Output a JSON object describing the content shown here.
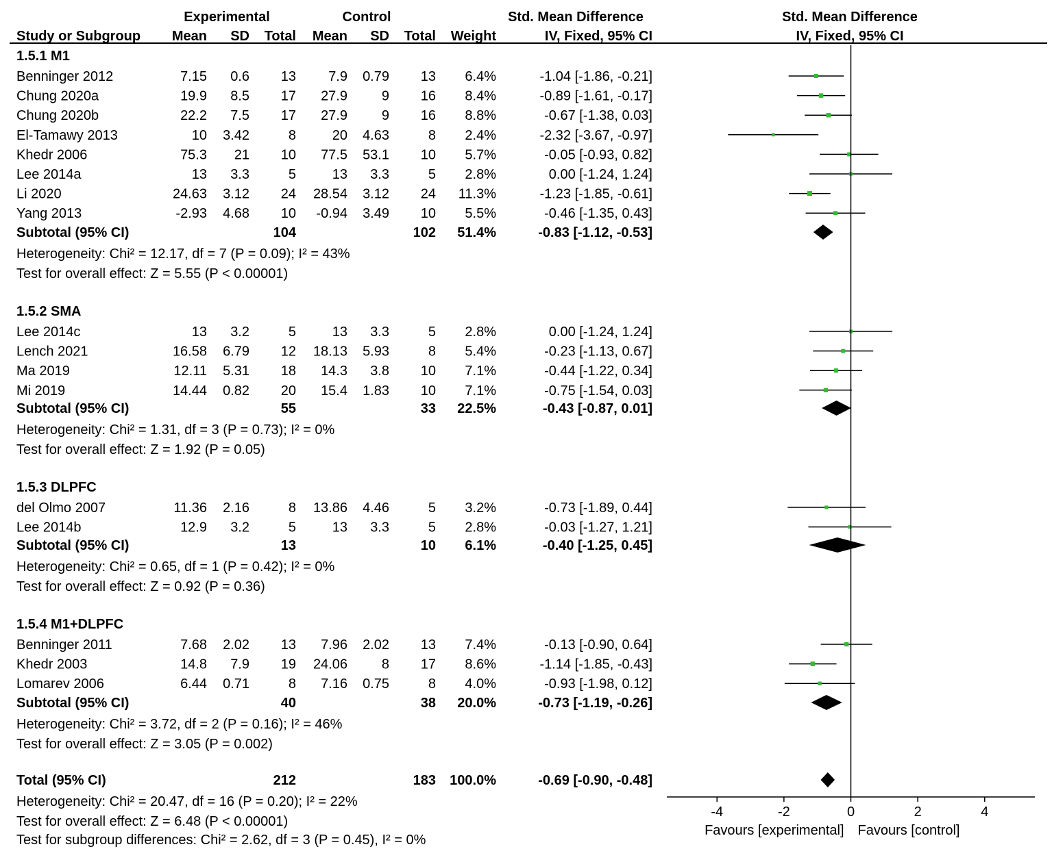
{
  "chart_data": {
    "type": "forest",
    "header": {
      "exp_group": "Experimental",
      "ctl_group": "Control",
      "effect_title": "Std. Mean Difference",
      "plot_title": "Std. Mean Difference",
      "col_study": "Study or Subgroup",
      "col_mean_e": "Mean",
      "col_sd_e": "SD",
      "col_total_e": "Total",
      "col_mean_c": "Mean",
      "col_sd_c": "SD",
      "col_total_c": "Total",
      "col_weight": "Weight",
      "col_ci": "IV, Fixed, 95% CI",
      "plot_ci": "IV, Fixed, 95% CI"
    },
    "subgroups": [
      {
        "title": "1.5.1 M1",
        "studies": [
          {
            "name": "Benninger 2012",
            "mean_e": "7.15",
            "sd_e": "0.6",
            "n_e": "13",
            "mean_c": "7.9",
            "sd_c": "0.79",
            "n_c": "13",
            "weight": "6.4%",
            "ci": "-1.04 [-1.86, -0.21]",
            "est": -1.04,
            "lo": -1.86,
            "hi": -0.21,
            "w": 6.4
          },
          {
            "name": "Chung 2020a",
            "mean_e": "19.9",
            "sd_e": "8.5",
            "n_e": "17",
            "mean_c": "27.9",
            "sd_c": "9",
            "n_c": "16",
            "weight": "8.4%",
            "ci": "-0.89 [-1.61, -0.17]",
            "est": -0.89,
            "lo": -1.61,
            "hi": -0.17,
            "w": 8.4
          },
          {
            "name": "Chung 2020b",
            "mean_e": "22.2",
            "sd_e": "7.5",
            "n_e": "17",
            "mean_c": "27.9",
            "sd_c": "9",
            "n_c": "16",
            "weight": "8.8%",
            "ci": "-0.67 [-1.38, 0.03]",
            "est": -0.67,
            "lo": -1.38,
            "hi": 0.03,
            "w": 8.8
          },
          {
            "name": "El-Tamawy 2013",
            "mean_e": "10",
            "sd_e": "3.42",
            "n_e": "8",
            "mean_c": "20",
            "sd_c": "4.63",
            "n_c": "8",
            "weight": "2.4%",
            "ci": "-2.32 [-3.67, -0.97]",
            "est": -2.32,
            "lo": -3.67,
            "hi": -0.97,
            "w": 2.4
          },
          {
            "name": "Khedr 2006",
            "mean_e": "75.3",
            "sd_e": "21",
            "n_e": "10",
            "mean_c": "77.5",
            "sd_c": "53.1",
            "n_c": "10",
            "weight": "5.7%",
            "ci": "-0.05 [-0.93, 0.82]",
            "est": -0.05,
            "lo": -0.93,
            "hi": 0.82,
            "w": 5.7
          },
          {
            "name": "Lee 2014a",
            "mean_e": "13",
            "sd_e": "3.3",
            "n_e": "5",
            "mean_c": "13",
            "sd_c": "3.3",
            "n_c": "5",
            "weight": "2.8%",
            "ci": "0.00 [-1.24, 1.24]",
            "est": 0.0,
            "lo": -1.24,
            "hi": 1.24,
            "w": 2.8
          },
          {
            "name": "Li 2020",
            "mean_e": "24.63",
            "sd_e": "3.12",
            "n_e": "24",
            "mean_c": "28.54",
            "sd_c": "3.12",
            "n_c": "24",
            "weight": "11.3%",
            "ci": "-1.23 [-1.85, -0.61]",
            "est": -1.23,
            "lo": -1.85,
            "hi": -0.61,
            "w": 11.3
          },
          {
            "name": "Yang 2013",
            "mean_e": "-2.93",
            "sd_e": "4.68",
            "n_e": "10",
            "mean_c": "-0.94",
            "sd_c": "3.49",
            "n_c": "10",
            "weight": "5.5%",
            "ci": "-0.46 [-1.35, 0.43]",
            "est": -0.46,
            "lo": -1.35,
            "hi": 0.43,
            "w": 5.5
          }
        ],
        "subtotal": {
          "label": "Subtotal (95% CI)",
          "n_e": "104",
          "n_c": "102",
          "weight": "51.4%",
          "ci": "-0.83 [-1.12, -0.53]",
          "est": -0.83,
          "lo": -1.12,
          "hi": -0.53
        },
        "heterogeneity": "Heterogeneity: Chi² = 12.17, df = 7 (P = 0.09); I² = 43%",
        "overall": "Test for overall effect: Z = 5.55 (P < 0.00001)"
      },
      {
        "title": "1.5.2 SMA",
        "studies": [
          {
            "name": "Lee 2014c",
            "mean_e": "13",
            "sd_e": "3.2",
            "n_e": "5",
            "mean_c": "13",
            "sd_c": "3.3",
            "n_c": "5",
            "weight": "2.8%",
            "ci": "0.00 [-1.24, 1.24]",
            "est": 0.0,
            "lo": -1.24,
            "hi": 1.24,
            "w": 2.8
          },
          {
            "name": "Lench 2021",
            "mean_e": "16.58",
            "sd_e": "6.79",
            "n_e": "12",
            "mean_c": "18.13",
            "sd_c": "5.93",
            "n_c": "8",
            "weight": "5.4%",
            "ci": "-0.23 [-1.13, 0.67]",
            "est": -0.23,
            "lo": -1.13,
            "hi": 0.67,
            "w": 5.4
          },
          {
            "name": "Ma 2019",
            "mean_e": "12.11",
            "sd_e": "5.31",
            "n_e": "18",
            "mean_c": "14.3",
            "sd_c": "3.8",
            "n_c": "10",
            "weight": "7.1%",
            "ci": "-0.44 [-1.22, 0.34]",
            "est": -0.44,
            "lo": -1.22,
            "hi": 0.34,
            "w": 7.1
          },
          {
            "name": "Mi 2019",
            "mean_e": "14.44",
            "sd_e": "0.82",
            "n_e": "20",
            "mean_c": "15.4",
            "sd_c": "1.83",
            "n_c": "10",
            "weight": "7.1%",
            "ci": "-0.75 [-1.54, 0.03]",
            "est": -0.75,
            "lo": -1.54,
            "hi": 0.03,
            "w": 7.1
          }
        ],
        "subtotal": {
          "label": "Subtotal (95% CI)",
          "n_e": "55",
          "n_c": "33",
          "weight": "22.5%",
          "ci": "-0.43 [-0.87, 0.01]",
          "est": -0.43,
          "lo": -0.87,
          "hi": 0.01
        },
        "heterogeneity": "Heterogeneity: Chi² = 1.31, df = 3 (P = 0.73); I² = 0%",
        "overall": "Test for overall effect: Z = 1.92 (P = 0.05)"
      },
      {
        "title": "1.5.3 DLPFC",
        "studies": [
          {
            "name": "del Olmo 2007",
            "mean_e": "11.36",
            "sd_e": "2.16",
            "n_e": "8",
            "mean_c": "13.86",
            "sd_c": "4.46",
            "n_c": "5",
            "weight": "3.2%",
            "ci": "-0.73 [-1.89, 0.44]",
            "est": -0.73,
            "lo": -1.89,
            "hi": 0.44,
            "w": 3.2
          },
          {
            "name": "Lee 2014b",
            "mean_e": "12.9",
            "sd_e": "3.2",
            "n_e": "5",
            "mean_c": "13",
            "sd_c": "3.3",
            "n_c": "5",
            "weight": "2.8%",
            "ci": "-0.03 [-1.27, 1.21]",
            "est": -0.03,
            "lo": -1.27,
            "hi": 1.21,
            "w": 2.8
          }
        ],
        "subtotal": {
          "label": "Subtotal (95% CI)",
          "n_e": "13",
          "n_c": "10",
          "weight": "6.1%",
          "ci": "-0.40 [-1.25, 0.45]",
          "est": -0.4,
          "lo": -1.25,
          "hi": 0.45
        },
        "heterogeneity": "Heterogeneity: Chi² = 0.65, df = 1 (P = 0.42); I² = 0%",
        "overall": "Test for overall effect: Z = 0.92 (P = 0.36)"
      },
      {
        "title": "1.5.4 M1+DLPFC",
        "studies": [
          {
            "name": "Benninger 2011",
            "mean_e": "7.68",
            "sd_e": "2.02",
            "n_e": "13",
            "mean_c": "7.96",
            "sd_c": "2.02",
            "n_c": "13",
            "weight": "7.4%",
            "ci": "-0.13 [-0.90, 0.64]",
            "est": -0.13,
            "lo": -0.9,
            "hi": 0.64,
            "w": 7.4
          },
          {
            "name": "Khedr 2003",
            "mean_e": "14.8",
            "sd_e": "7.9",
            "n_e": "19",
            "mean_c": "24.06",
            "sd_c": "8",
            "n_c": "17",
            "weight": "8.6%",
            "ci": "-1.14 [-1.85, -0.43]",
            "est": -1.14,
            "lo": -1.85,
            "hi": -0.43,
            "w": 8.6
          },
          {
            "name": "Lomarev 2006",
            "mean_e": "6.44",
            "sd_e": "0.71",
            "n_e": "8",
            "mean_c": "7.16",
            "sd_c": "0.75",
            "n_c": "8",
            "weight": "4.0%",
            "ci": "-0.93 [-1.98, 0.12]",
            "est": -0.93,
            "lo": -1.98,
            "hi": 0.12,
            "w": 4.0
          }
        ],
        "subtotal": {
          "label": "Subtotal (95% CI)",
          "n_e": "40",
          "n_c": "38",
          "weight": "20.0%",
          "ci": "-0.73 [-1.19, -0.26]",
          "est": -0.73,
          "lo": -1.19,
          "hi": -0.26
        },
        "heterogeneity": "Heterogeneity: Chi² = 3.72, df = 2 (P = 0.16); I² = 46%",
        "overall": "Test for overall effect: Z = 3.05 (P = 0.002)"
      }
    ],
    "total": {
      "label": "Total (95% CI)",
      "n_e": "212",
      "n_c": "183",
      "weight": "100.0%",
      "ci": "-0.69 [-0.90, -0.48]",
      "est": -0.69,
      "lo": -0.9,
      "hi": -0.48
    },
    "footer": [
      "Heterogeneity: Chi² = 20.47, df = 16 (P = 0.20); I² = 22%",
      "Test for overall effect: Z = 6.48 (P < 0.00001)",
      "Test for subgroup differences: Chi² = 2.62, df = 3 (P = 0.45), I² = 0%"
    ],
    "axis": {
      "min": -5.5,
      "max": 5.5,
      "ticks": [
        -4,
        -2,
        0,
        2,
        4
      ],
      "tick_labels": [
        "-4",
        "-2",
        "0",
        "2",
        "4"
      ],
      "favours_left": "Favours [experimental]",
      "favours_right": "Favours [control]"
    },
    "colors": {
      "square": "#33bb33",
      "diamond": "#000000",
      "line": "#000000"
    }
  }
}
